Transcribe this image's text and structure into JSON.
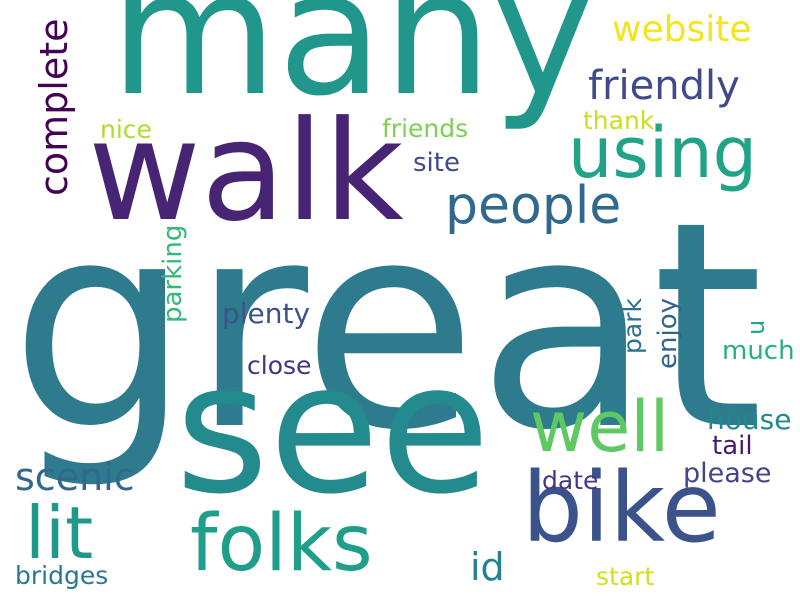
{
  "words": [
    {
      "text": "great",
      "color": "#2e7b8e",
      "vertical": false
    },
    {
      "text": "many",
      "color": "#21968b",
      "vertical": false
    },
    {
      "text": "walk",
      "color": "#482475",
      "vertical": false
    },
    {
      "text": "see",
      "color": "#238a8d",
      "vertical": false
    },
    {
      "text": "bike",
      "color": "#3b528b",
      "vertical": false
    },
    {
      "text": "using",
      "color": "#20a386",
      "vertical": false
    },
    {
      "text": "folks",
      "color": "#1f9e89",
      "vertical": false
    },
    {
      "text": "well",
      "color": "#5ec962",
      "vertical": false
    },
    {
      "text": "people",
      "color": "#31688e",
      "vertical": false
    },
    {
      "text": "lit",
      "color": "#1f9a8a",
      "vertical": false
    },
    {
      "text": "friendly",
      "color": "#3e4a89",
      "vertical": false
    },
    {
      "text": "website",
      "color": "#f2e51d",
      "vertical": false
    },
    {
      "text": "complete",
      "color": "#440154",
      "vertical": true
    },
    {
      "text": "scenic",
      "color": "#31688e",
      "vertical": false
    },
    {
      "text": "id",
      "color": "#26828e",
      "vertical": false
    },
    {
      "text": "nice",
      "color": "#addc30",
      "vertical": false
    },
    {
      "text": "friends",
      "color": "#7ad151",
      "vertical": false
    },
    {
      "text": "thank",
      "color": "#c8e020",
      "vertical": false
    },
    {
      "text": "site",
      "color": "#3e4a89",
      "vertical": false
    },
    {
      "text": "parking",
      "color": "#35b779",
      "vertical": true
    },
    {
      "text": "plenty",
      "color": "#3b528b",
      "vertical": false
    },
    {
      "text": "park",
      "color": "#2c728e",
      "vertical": true
    },
    {
      "text": "enjoy",
      "color": "#33638d",
      "vertical": true
    },
    {
      "text": "close",
      "color": "#46327e",
      "vertical": false
    },
    {
      "text": "u",
      "color": "#22a884",
      "vertical": true
    },
    {
      "text": "much",
      "color": "#29af7f",
      "vertical": false
    },
    {
      "text": "house",
      "color": "#23888e",
      "vertical": false
    },
    {
      "text": "tail",
      "color": "#481a6c",
      "vertical": false
    },
    {
      "text": "please",
      "color": "#414487",
      "vertical": false
    },
    {
      "text": "date",
      "color": "#453882",
      "vertical": false
    },
    {
      "text": "bridges",
      "color": "#2a788e",
      "vertical": false
    },
    {
      "text": "start",
      "color": "#d0e11c",
      "vertical": false
    }
  ]
}
